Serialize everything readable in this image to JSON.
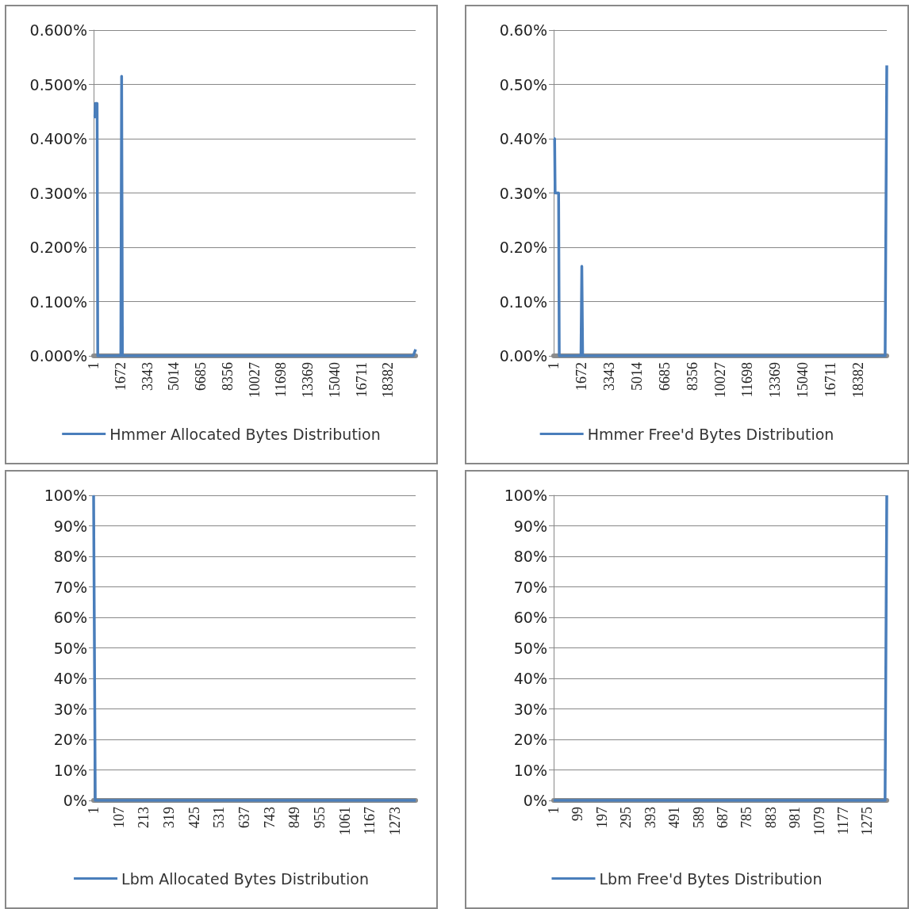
{
  "chart_data": [
    {
      "type": "line",
      "xlim": [
        1,
        20100
      ],
      "xticks": [
        1,
        1672,
        3343,
        5014,
        6685,
        8356,
        10027,
        11698,
        13369,
        15040,
        16711,
        18382
      ],
      "ylim": [
        0,
        0.6
      ],
      "yticks": [
        {
          "value": 0,
          "label": "0.000%"
        },
        {
          "value": 0.1,
          "label": "0.100%"
        },
        {
          "value": 0.2,
          "label": "0.200%"
        },
        {
          "value": 0.3,
          "label": "0.300%"
        },
        {
          "value": 0.4,
          "label": "0.400%"
        },
        {
          "value": 0.5,
          "label": "0.500%"
        },
        {
          "value": 0.6,
          "label": "0.600%"
        }
      ],
      "grid": "y",
      "legend": "bottom",
      "marker": "none",
      "series": [
        {
          "name": "Hmmer Allocated Bytes Distribution",
          "color": "#4a7ebb",
          "x": [
            1,
            80,
            110,
            220,
            260,
            1700,
            1750,
            1800,
            19950,
            20100
          ],
          "values": [
            0.44,
            0.44,
            0.465,
            0.465,
            0,
            0,
            0.515,
            0,
            0,
            0.012
          ]
        }
      ]
    },
    {
      "type": "line",
      "xlim": [
        1,
        20100
      ],
      "xticks": [
        1,
        1672,
        3343,
        5014,
        6685,
        8356,
        10027,
        11698,
        13369,
        15040,
        16711,
        18382
      ],
      "ylim": [
        0,
        0.6
      ],
      "yticks": [
        {
          "value": 0,
          "label": "0.00%"
        },
        {
          "value": 0.1,
          "label": "0.10%"
        },
        {
          "value": 0.2,
          "label": "0.20%"
        },
        {
          "value": 0.3,
          "label": "0.30%"
        },
        {
          "value": 0.4,
          "label": "0.40%"
        },
        {
          "value": 0.5,
          "label": "0.50%"
        },
        {
          "value": 0.6,
          "label": "0.60%"
        }
      ],
      "grid": "y",
      "legend": "bottom",
      "marker": "none",
      "series": [
        {
          "name": "Hmmer Free'd Bytes Distribution",
          "color": "#4a7ebb",
          "x": [
            1,
            60,
            90,
            300,
            340,
            1650,
            1700,
            1750,
            20000,
            20100
          ],
          "values": [
            0.4,
            0.4,
            0.3,
            0.3,
            0,
            0,
            0.165,
            0,
            0,
            0.535
          ]
        }
      ]
    },
    {
      "type": "line",
      "xlim": [
        1,
        1360
      ],
      "xticks": [
        1,
        107,
        213,
        319,
        425,
        531,
        637,
        743,
        849,
        955,
        1061,
        1167,
        1273
      ],
      "ylim": [
        0,
        100
      ],
      "yticks": [
        {
          "value": 0,
          "label": "0%"
        },
        {
          "value": 10,
          "label": "10%"
        },
        {
          "value": 20,
          "label": "20%"
        },
        {
          "value": 30,
          "label": "30%"
        },
        {
          "value": 40,
          "label": "40%"
        },
        {
          "value": 50,
          "label": "50%"
        },
        {
          "value": 60,
          "label": "60%"
        },
        {
          "value": 70,
          "label": "70%"
        },
        {
          "value": 80,
          "label": "80%"
        },
        {
          "value": 90,
          "label": "90%"
        },
        {
          "value": 100,
          "label": "100%"
        }
      ],
      "grid": "y",
      "legend": "bottom",
      "marker": "none",
      "series": [
        {
          "name": "Lbm Allocated Bytes Distribution",
          "color": "#4a7ebb",
          "x": [
            1,
            8,
            1360
          ],
          "values": [
            100,
            0,
            0
          ]
        }
      ]
    },
    {
      "type": "line",
      "xlim": [
        1,
        1354
      ],
      "xticks": [
        1,
        99,
        197,
        295,
        393,
        491,
        589,
        687,
        785,
        883,
        981,
        1079,
        1177,
        1275
      ],
      "ylim": [
        0,
        100
      ],
      "yticks": [
        {
          "value": 0,
          "label": "0%"
        },
        {
          "value": 10,
          "label": "10%"
        },
        {
          "value": 20,
          "label": "20%"
        },
        {
          "value": 30,
          "label": "30%"
        },
        {
          "value": 40,
          "label": "40%"
        },
        {
          "value": 50,
          "label": "50%"
        },
        {
          "value": 60,
          "label": "60%"
        },
        {
          "value": 70,
          "label": "70%"
        },
        {
          "value": 80,
          "label": "80%"
        },
        {
          "value": 90,
          "label": "90%"
        },
        {
          "value": 100,
          "label": "100%"
        }
      ],
      "grid": "y",
      "legend": "bottom",
      "marker": "none",
      "series": [
        {
          "name": "Lbm Free'd Bytes Distribution",
          "color": "#4a7ebb",
          "x": [
            1,
            1347,
            1354
          ],
          "values": [
            0,
            0,
            100
          ]
        }
      ]
    }
  ]
}
